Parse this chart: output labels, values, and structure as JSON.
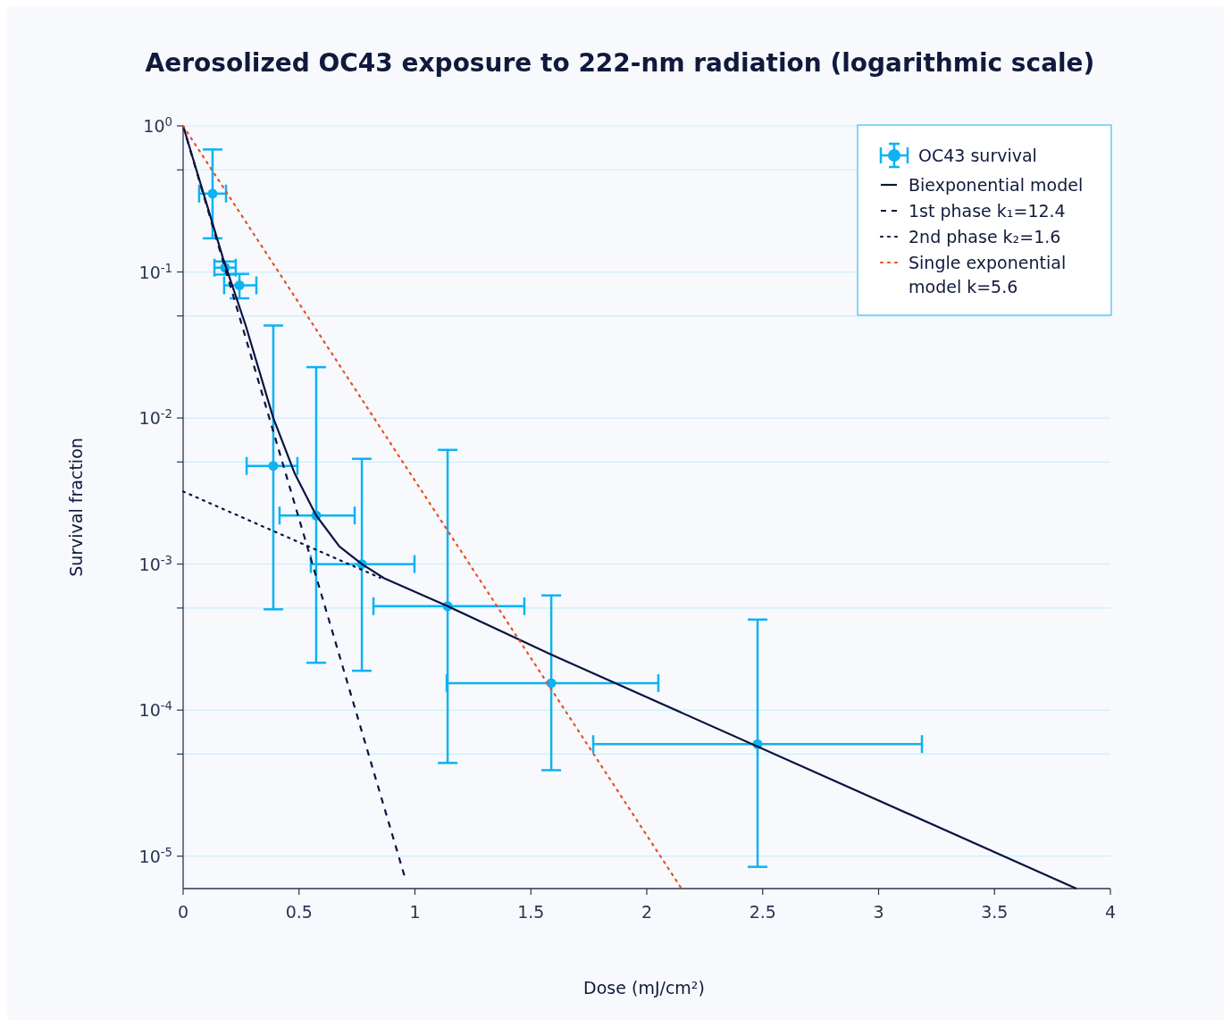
{
  "chart_data": {
    "type": "line",
    "title": "Aerosolized OC43 exposure to 222-nm radiation (logarithmic scale)",
    "xlabel": "Dose (mJ/cm²)",
    "ylabel": "Survival fraction",
    "log": "y",
    "grid": "y",
    "legend": "top right",
    "xlim": [
      0,
      4
    ],
    "ylim": [
      6e-06,
      1
    ],
    "xticks": [
      0,
      0.5,
      1,
      1.5,
      2,
      2.5,
      3,
      3.5,
      4
    ],
    "yticks": [
      {
        "value": 1,
        "label": "10$^{0}$"
      },
      {
        "value": 0.5,
        "label": null
      },
      {
        "value": 0.1,
        "label": "10$^{-1}$"
      },
      {
        "value": 0.05,
        "label": null
      },
      {
        "value": 0.01,
        "label": "10$^{-2}$"
      },
      {
        "value": 0.005,
        "label": null
      },
      {
        "value": 0.001,
        "label": "10$^{-3}$"
      },
      {
        "value": 0.0005,
        "label": null
      },
      {
        "value": 0.0001,
        "label": "10$^{-4}$"
      },
      {
        "value": 5e-05,
        "label": null
      },
      {
        "value": 1e-05,
        "label": "10$^{-5}$"
      }
    ],
    "series": [
      {
        "name": "OC43 survival",
        "type": "scatter",
        "marker": "circle",
        "color": "#0db2f2",
        "x": [
          0.127,
          0.181,
          0.243,
          0.389,
          0.574,
          0.771,
          1.141,
          1.588,
          2.478
        ],
        "values": [
          0.344,
          0.107,
          0.081,
          0.0047,
          0.00215,
          0.001,
          0.000515,
          0.000153,
          5.85e-05
        ],
        "errors": [
          [
            0.17,
            0.69
          ],
          [
            0.096,
            0.118
          ],
          [
            0.066,
            0.097
          ],
          [
            0.00049,
            0.043
          ],
          [
            0.000211,
            0.0223
          ],
          [
            0.000186,
            0.00526
          ],
          [
            4.35e-05,
            0.00605
          ],
          [
            3.88e-05,
            0.00061
          ],
          [
            8.45e-06,
            0.000417
          ]
        ],
        "xerrors": [
          [
            0.069,
            0.185
          ],
          [
            0.135,
            0.227
          ],
          [
            0.177,
            0.316
          ],
          [
            0.274,
            0.493
          ],
          [
            0.416,
            0.74
          ],
          [
            0.551,
            0.998
          ],
          [
            0.821,
            1.472
          ],
          [
            1.137,
            2.05
          ],
          [
            1.769,
            3.187
          ]
        ]
      },
      {
        "name": "Biexponential model",
        "type": "line",
        "line_style": "solid",
        "color": "#0a1440",
        "x": [
          0,
          0.173,
          0.27,
          0.389,
          0.482,
          0.574,
          0.674,
          0.771,
          0.867,
          1.141,
          1.588,
          3.853
        ],
        "values": [
          1,
          0.123,
          0.043,
          0.01,
          0.00415,
          0.00215,
          0.00132,
          0.001,
          0.0008,
          0.000515,
          0.00024,
          6e-06
        ]
      },
      {
        "name": "1st phase k₁=12.4",
        "type": "line",
        "line_style": "dashed",
        "color": "#0a1440",
        "x": [
          0,
          0.955
        ],
        "values": [
          1,
          7.3e-06
        ]
      },
      {
        "name": "2nd phase k₂=1.6",
        "type": "line",
        "line_style": "dotted",
        "color": "#0a1440",
        "x": [
          0,
          0.85
        ],
        "values": [
          0.00314,
          0.000805
        ]
      },
      {
        "name": "Single exponential model k=5.6",
        "type": "line",
        "line_style": "dotted",
        "color": "#e8501e",
        "x": [
          0,
          2.15
        ],
        "values": [
          1,
          6e-06
        ]
      }
    ]
  }
}
